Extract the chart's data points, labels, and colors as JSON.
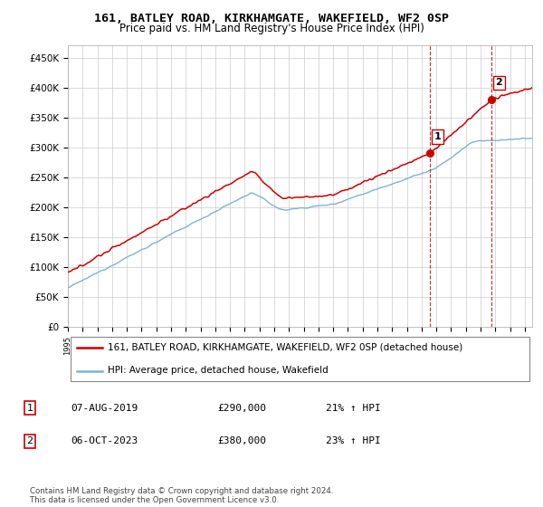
{
  "title": "161, BATLEY ROAD, KIRKHAMGATE, WAKEFIELD, WF2 0SP",
  "subtitle": "Price paid vs. HM Land Registry's House Price Index (HPI)",
  "ylabel_ticks": [
    "£0",
    "£50K",
    "£100K",
    "£150K",
    "£200K",
    "£250K",
    "£300K",
    "£350K",
    "£400K",
    "£450K"
  ],
  "ytick_values": [
    0,
    50000,
    100000,
    150000,
    200000,
    250000,
    300000,
    350000,
    400000,
    450000
  ],
  "ylim": [
    0,
    470000
  ],
  "xlim_start": 1995.0,
  "xlim_end": 2026.5,
  "background_color": "#ffffff",
  "plot_background": "#ffffff",
  "grid_color": "#cccccc",
  "red_line_color": "#cc0000",
  "blue_line_color": "#7fb3d3",
  "marker1_date": 2019.58,
  "marker1_value": 290000,
  "marker2_date": 2023.75,
  "marker2_value": 380000,
  "vline1_color": "#cc0000",
  "vline2_color": "#cc0000",
  "legend_red_label": "161, BATLEY ROAD, KIRKHAMGATE, WAKEFIELD, WF2 0SP (detached house)",
  "legend_blue_label": "HPI: Average price, detached house, Wakefield",
  "table_row1": [
    "1",
    "07-AUG-2019",
    "£290,000",
    "21% ↑ HPI"
  ],
  "table_row2": [
    "2",
    "06-OCT-2023",
    "£380,000",
    "23% ↑ HPI"
  ],
  "footer": "Contains HM Land Registry data © Crown copyright and database right 2024.\nThis data is licensed under the Open Government Licence v3.0.",
  "title_fontsize": 9.5,
  "subtitle_fontsize": 8.5,
  "tick_fontsize": 7.5
}
